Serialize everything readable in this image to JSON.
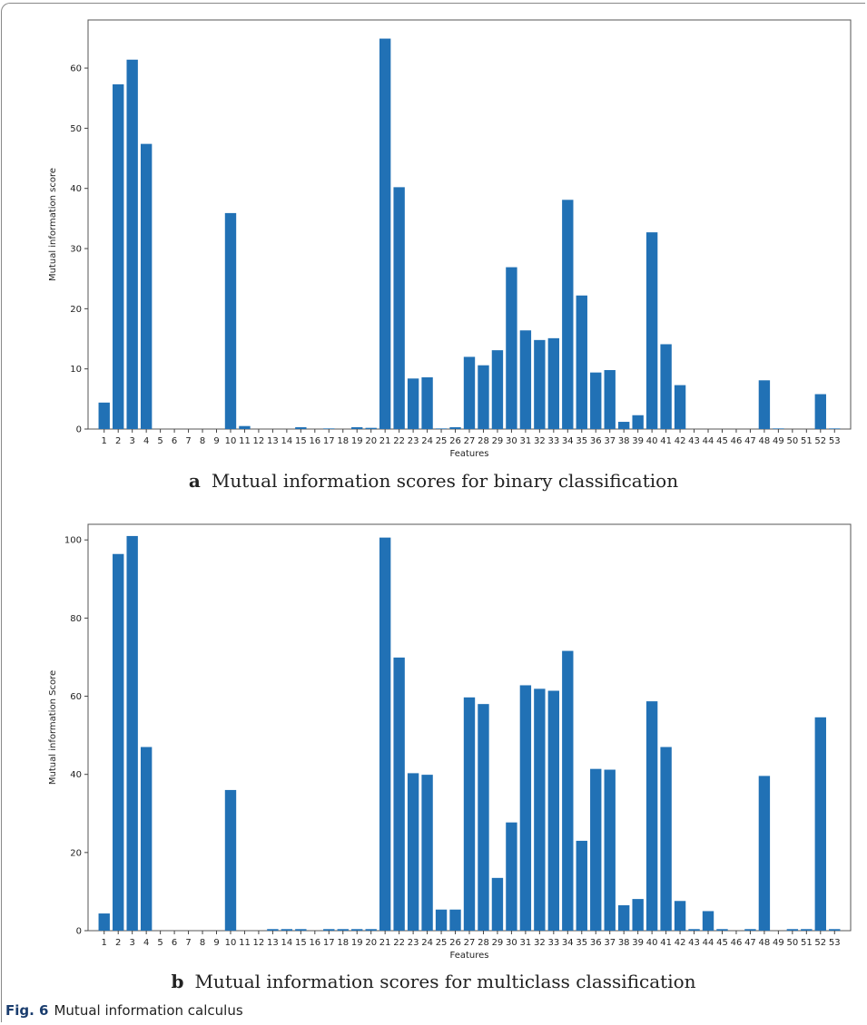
{
  "colors": {
    "bar": "#2171b5",
    "frame": "#555555",
    "fig_label": "#1a3d6e"
  },
  "panels": [
    {
      "letter": "a",
      "caption": "Mutual information scores for binary classification"
    },
    {
      "letter": "b",
      "caption": "Mutual information scores for multiclass classification"
    }
  ],
  "figure": {
    "label": "Fig. 6",
    "caption": "Mutual information calculus"
  },
  "chart_data": [
    {
      "type": "bar",
      "xlabel": "Features",
      "ylabel": "Mutual information score",
      "ylim": [
        0,
        68
      ],
      "yticks": [
        0,
        10,
        20,
        30,
        40,
        50,
        60
      ],
      "categories": [
        "1",
        "2",
        "3",
        "4",
        "5",
        "6",
        "7",
        "8",
        "9",
        "10",
        "11",
        "12",
        "13",
        "14",
        "15",
        "16",
        "17",
        "18",
        "19",
        "20",
        "21",
        "22",
        "23",
        "24",
        "25",
        "26",
        "27",
        "28",
        "29",
        "30",
        "31",
        "32",
        "33",
        "34",
        "35",
        "36",
        "37",
        "38",
        "39",
        "40",
        "41",
        "42",
        "43",
        "44",
        "45",
        "46",
        "47",
        "48",
        "49",
        "50",
        "51",
        "52",
        "53"
      ],
      "values": [
        4.4,
        57.3,
        61.4,
        47.4,
        0,
        0,
        0,
        0,
        0,
        35.9,
        0.5,
        0,
        0,
        0,
        0.3,
        0,
        0.1,
        0,
        0.3,
        0.2,
        64.9,
        40.2,
        8.4,
        8.6,
        0.1,
        0.3,
        12,
        10.6,
        13.1,
        26.9,
        16.4,
        14.8,
        15.1,
        38.1,
        22.2,
        9.4,
        9.8,
        1.2,
        2.3,
        32.7,
        14.1,
        7.3,
        0,
        0,
        0,
        0,
        0,
        8.1,
        0.1,
        0,
        0,
        5.8,
        0.1
      ],
      "grid": false
    },
    {
      "type": "bar",
      "xlabel": "Features",
      "ylabel": "Mutual information Score",
      "ylim": [
        0,
        104
      ],
      "yticks": [
        0,
        20,
        40,
        60,
        80,
        100
      ],
      "categories": [
        "1",
        "2",
        "3",
        "4",
        "5",
        "6",
        "7",
        "8",
        "9",
        "10",
        "11",
        "12",
        "13",
        "14",
        "15",
        "16",
        "17",
        "18",
        "19",
        "20",
        "21",
        "22",
        "23",
        "24",
        "25",
        "26",
        "27",
        "28",
        "29",
        "30",
        "31",
        "32",
        "33",
        "34",
        "35",
        "36",
        "37",
        "38",
        "39",
        "40",
        "41",
        "42",
        "43",
        "44",
        "45",
        "46",
        "47",
        "48",
        "49",
        "50",
        "51",
        "52",
        "53"
      ],
      "values": [
        4.4,
        96.4,
        101,
        47,
        0,
        0,
        0,
        0,
        0,
        36,
        0,
        0,
        0.4,
        0.4,
        0.4,
        0,
        0.4,
        0.4,
        0.4,
        0.4,
        100.6,
        69.9,
        40.3,
        39.9,
        5.4,
        5.4,
        59.7,
        58,
        13.5,
        27.7,
        62.8,
        61.9,
        61.4,
        71.6,
        23,
        41.4,
        41.2,
        6.5,
        8.1,
        58.7,
        47,
        7.6,
        0.4,
        5,
        0.4,
        0,
        0.4,
        39.6,
        0,
        0.4,
        0.4,
        54.6,
        0.4
      ],
      "grid": false
    }
  ]
}
